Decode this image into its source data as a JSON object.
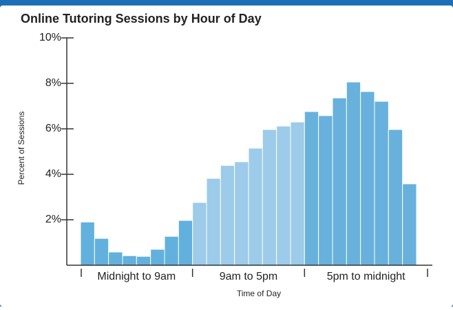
{
  "chart_data": {
    "type": "bar",
    "title": "Online Tutoring Sessions by Hour of Day",
    "xlabel": "Time of Day",
    "ylabel": "Percent of Sessions",
    "categories": [
      null,
      null,
      null,
      null,
      null,
      null,
      null,
      null,
      null,
      null,
      null,
      null,
      null,
      null,
      null,
      null,
      null,
      null,
      null,
      null,
      null,
      null,
      null,
      null
    ],
    "values": [
      1.9,
      1.18,
      0.58,
      0.42,
      0.39,
      0.7,
      1.27,
      1.97,
      2.76,
      3.82,
      4.39,
      4.55,
      5.15,
      5.97,
      6.12,
      6.3,
      6.76,
      6.58,
      7.36,
      8.06,
      7.64,
      7.21,
      5.97,
      3.58
    ],
    "group_labels": [
      "Midnight to 9am",
      "9am to 5pm",
      "5pm to midnight"
    ],
    "group_colors": [
      "#62b0dd",
      "#9dcbea",
      "#68b1dd"
    ],
    "ylim": [
      0,
      10
    ],
    "yticks": [
      {
        "value": 2,
        "label": "2%"
      },
      {
        "value": 4,
        "label": "4%"
      },
      {
        "value": 6,
        "label": "6%"
      },
      {
        "value": 8,
        "label": "8%"
      },
      {
        "value": 10,
        "label": "10%"
      }
    ]
  }
}
